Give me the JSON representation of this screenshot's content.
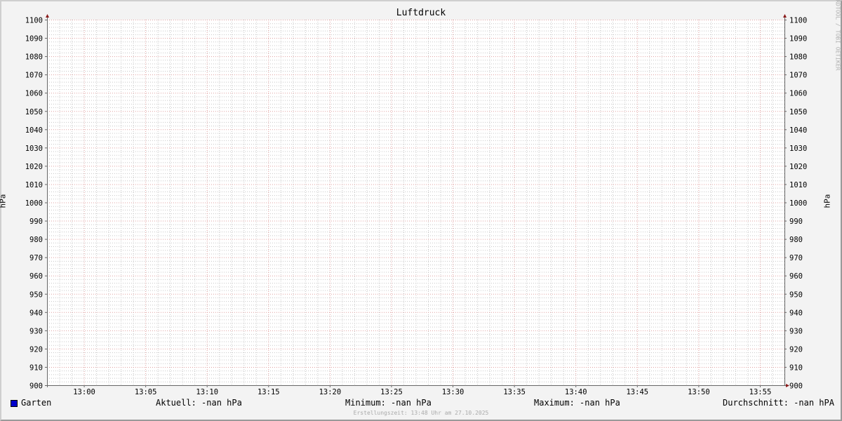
{
  "chart_data": {
    "type": "line",
    "title": "Luftdruck",
    "ylabel": "hPa",
    "ylabel_right": "hPa",
    "ylim": [
      900,
      1100
    ],
    "y_major_step": 10,
    "y_minor_step": 2,
    "yticks": [
      900,
      910,
      920,
      930,
      940,
      950,
      960,
      970,
      980,
      990,
      1000,
      1010,
      1020,
      1030,
      1040,
      1050,
      1060,
      1070,
      1080,
      1090,
      1100
    ],
    "xlim": [
      "12:57",
      "13:57"
    ],
    "xticks": [
      "13:00",
      "13:05",
      "13:10",
      "13:15",
      "13:20",
      "13:25",
      "13:30",
      "13:35",
      "13:40",
      "13:45",
      "13:50",
      "13:55"
    ],
    "grid": true,
    "series": [
      {
        "name": "Garten",
        "color": "#0000cc",
        "values": []
      }
    ],
    "colors": {
      "major_grid": "#e0a0a0",
      "minor_grid": "#c8c8c8",
      "axis": "#666666",
      "arrow": "#8b1a1a",
      "background": "#f3f3f3",
      "canvas": "#ffffff"
    }
  },
  "legend": {
    "series_name": "Garten",
    "current": "Aktuell: -nan hPa",
    "minimum": "Minimum: -nan hPa",
    "maximum": "Maximum: -nan hPa",
    "average": "Durchschnitt: -nan hPA"
  },
  "footer": "Erstellungszeit: 13:48 Uhr am 27.10.2025",
  "watermark": "RRDTOOL / TOBI OETIKER"
}
